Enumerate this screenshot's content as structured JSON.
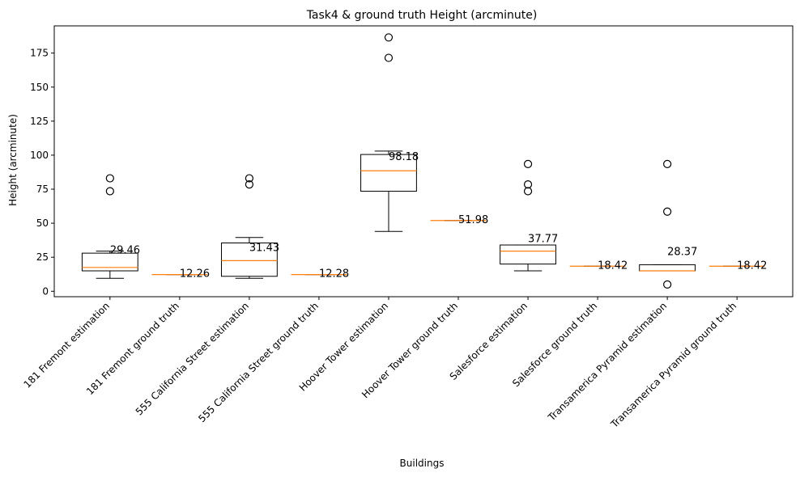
{
  "chart_data": {
    "type": "box",
    "title": "Task4 & ground truth Height (arcminute)",
    "xlabel": "Buildings",
    "ylabel": "Height (arcminute)",
    "ylim": [
      -4,
      195
    ],
    "yticks": [
      0,
      25,
      50,
      75,
      100,
      125,
      150,
      175
    ],
    "grid": false,
    "colors": {
      "box": "#000000",
      "median": "#ff7f0e",
      "flier": "#000000"
    },
    "categories": [
      "181 Fremont estimation",
      "181 Fremont ground truth",
      "555 California Street estimation",
      "555 California Street ground truth",
      "Hoover Tower estimation",
      "Hoover Tower ground truth",
      "Salesforce estimation",
      "Salesforce ground truth",
      "Transamerica Pyramid estimation",
      "Transamerica Pyramid ground truth"
    ],
    "boxes": [
      {
        "whislo": 9.5,
        "q1": 15,
        "med": 17.5,
        "q3": 28,
        "whishi": 29.5,
        "fliers": [
          73.5,
          83
        ],
        "label": "29.46",
        "label_y": 29.46
      },
      {
        "whislo": 12.26,
        "q1": 12.26,
        "med": 12.26,
        "q3": 12.26,
        "whishi": 12.26,
        "fliers": [],
        "label": "12.26",
        "label_y": 12.26
      },
      {
        "whislo": 9.5,
        "q1": 11,
        "med": 22.5,
        "q3": 35.5,
        "whishi": 39.5,
        "fliers": [
          78.5,
          83
        ],
        "label": "31.43",
        "label_y": 31.43
      },
      {
        "whislo": 12.28,
        "q1": 12.28,
        "med": 12.28,
        "q3": 12.28,
        "whishi": 12.28,
        "fliers": [],
        "label": "12.28",
        "label_y": 12.28
      },
      {
        "whislo": 44,
        "q1": 73.5,
        "med": 88.5,
        "q3": 100.5,
        "whishi": 103,
        "fliers": [
          171.5,
          186.5
        ],
        "label": "98.18",
        "label_y": 98.18
      },
      {
        "whislo": 51.98,
        "q1": 51.98,
        "med": 51.98,
        "q3": 51.98,
        "whishi": 51.98,
        "fliers": [],
        "label": "51.98",
        "label_y": 51.98
      },
      {
        "whislo": 15,
        "q1": 20,
        "med": 29.5,
        "q3": 34,
        "whishi": 34,
        "fliers": [
          73.5,
          78.5,
          93.5
        ],
        "label": "37.77",
        "label_y": 37.77
      },
      {
        "whislo": 18.42,
        "q1": 18.42,
        "med": 18.42,
        "q3": 18.42,
        "whishi": 18.42,
        "fliers": [],
        "label": "18.42",
        "label_y": 18.42
      },
      {
        "whislo": 15,
        "q1": 15,
        "med": 15,
        "q3": 19.5,
        "whishi": 19.5,
        "fliers": [
          5,
          58.5,
          93.5
        ],
        "label": "28.37",
        "label_y": 28.37
      },
      {
        "whislo": 18.42,
        "q1": 18.42,
        "med": 18.42,
        "q3": 18.42,
        "whishi": 18.42,
        "fliers": [],
        "label": "18.42",
        "label_y": 18.42
      }
    ]
  }
}
